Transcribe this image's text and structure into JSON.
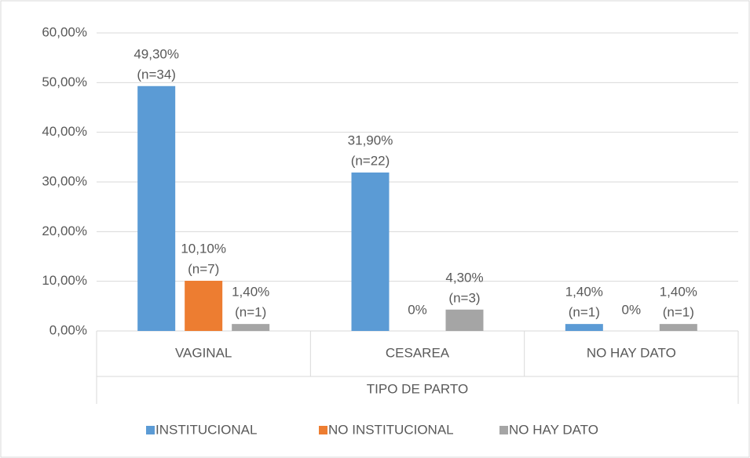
{
  "chart_data": {
    "type": "bar",
    "categories": [
      "VAGINAL",
      "CESAREA",
      "NO HAY DATO"
    ],
    "x_axis_title": "TIPO  DE PARTO",
    "series": [
      {
        "name": "INSTITUCIONAL",
        "color": "#5b9bd5",
        "values": [
          49.3,
          31.9,
          1.4
        ],
        "value_labels": [
          "49,30%",
          "31,90%",
          "1,40%"
        ],
        "count_labels": [
          "(n=34)",
          "(n=22)",
          "(n=1)"
        ]
      },
      {
        "name": "NO INSTITUCIONAL",
        "color": "#ed7d31",
        "values": [
          10.1,
          0,
          0
        ],
        "value_labels": [
          "10,10%",
          "0%",
          "0%"
        ],
        "count_labels": [
          "(n=7)",
          null,
          null
        ]
      },
      {
        "name": "NO HAY DATO",
        "color": "#a5a5a5",
        "values": [
          1.4,
          4.3,
          1.4
        ],
        "value_labels": [
          "1,40%",
          "4,30%",
          "1,40%"
        ],
        "count_labels": [
          "(n=1)",
          "(n=3)",
          "(n=1)"
        ]
      }
    ],
    "ylim": [
      0,
      60
    ],
    "yticks": [
      {
        "value": 0,
        "label": "0,00%"
      },
      {
        "value": 10,
        "label": "10,00%"
      },
      {
        "value": 20,
        "label": "20,00%"
      },
      {
        "value": 30,
        "label": "30,00%"
      },
      {
        "value": 40,
        "label": "40,00%"
      },
      {
        "value": 50,
        "label": "50,00%"
      },
      {
        "value": 60,
        "label": "60,00%"
      }
    ],
    "grid": true,
    "legend": "bottom"
  }
}
